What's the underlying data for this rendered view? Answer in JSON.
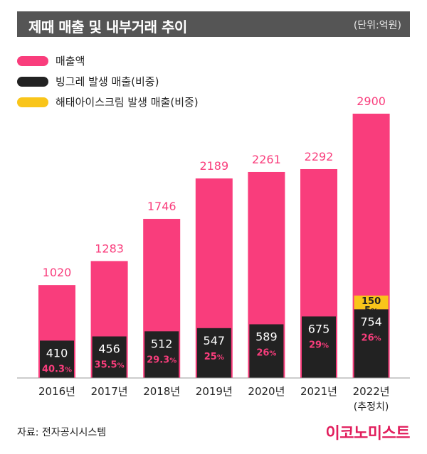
{
  "header": {
    "title": "제때 매출 및 내부거래 추이",
    "unit": "(단위:억원)"
  },
  "colors": {
    "sales": "#f93d7c",
    "binggrae": "#222222",
    "haitai": "#f9c51a",
    "header_bg": "#555555",
    "brand": "#e11d5c"
  },
  "legend": [
    {
      "label": "매출액",
      "color": "#f93d7c"
    },
    {
      "label": "빙그레 발생 매출(비중)",
      "color": "#222222"
    },
    {
      "label": "해태아이스크림 발생 매출(비중)",
      "color": "#f9c51a"
    }
  ],
  "chart_data": {
    "type": "bar",
    "categories": [
      "2016년",
      "2017년",
      "2018년",
      "2019년",
      "2020년",
      "2021년",
      "2022년"
    ],
    "category_notes": [
      "",
      "",
      "",
      "",
      "",
      "",
      "(추정치)"
    ],
    "series": [
      {
        "name": "매출액",
        "values": [
          1020,
          1283,
          1746,
          2189,
          2261,
          2292,
          2900
        ]
      },
      {
        "name": "빙그레 발생 매출",
        "values": [
          410,
          456,
          512,
          547,
          589,
          675,
          754
        ],
        "shares": [
          "40.3",
          "35.5",
          "29.3",
          "25",
          "26",
          "29",
          "26"
        ]
      },
      {
        "name": "해태아이스크림 발생 매출",
        "values": [
          null,
          null,
          null,
          null,
          null,
          null,
          150
        ],
        "shares": [
          null,
          null,
          null,
          null,
          null,
          null,
          "5"
        ]
      }
    ],
    "percent_suffix": "%",
    "title": "제때 매출 및 내부거래 추이",
    "unit": "억원",
    "ylim": [
      0,
      2900
    ]
  },
  "footer": {
    "source": "자료: 전자공시시스템",
    "brand": "이코노미스트"
  }
}
